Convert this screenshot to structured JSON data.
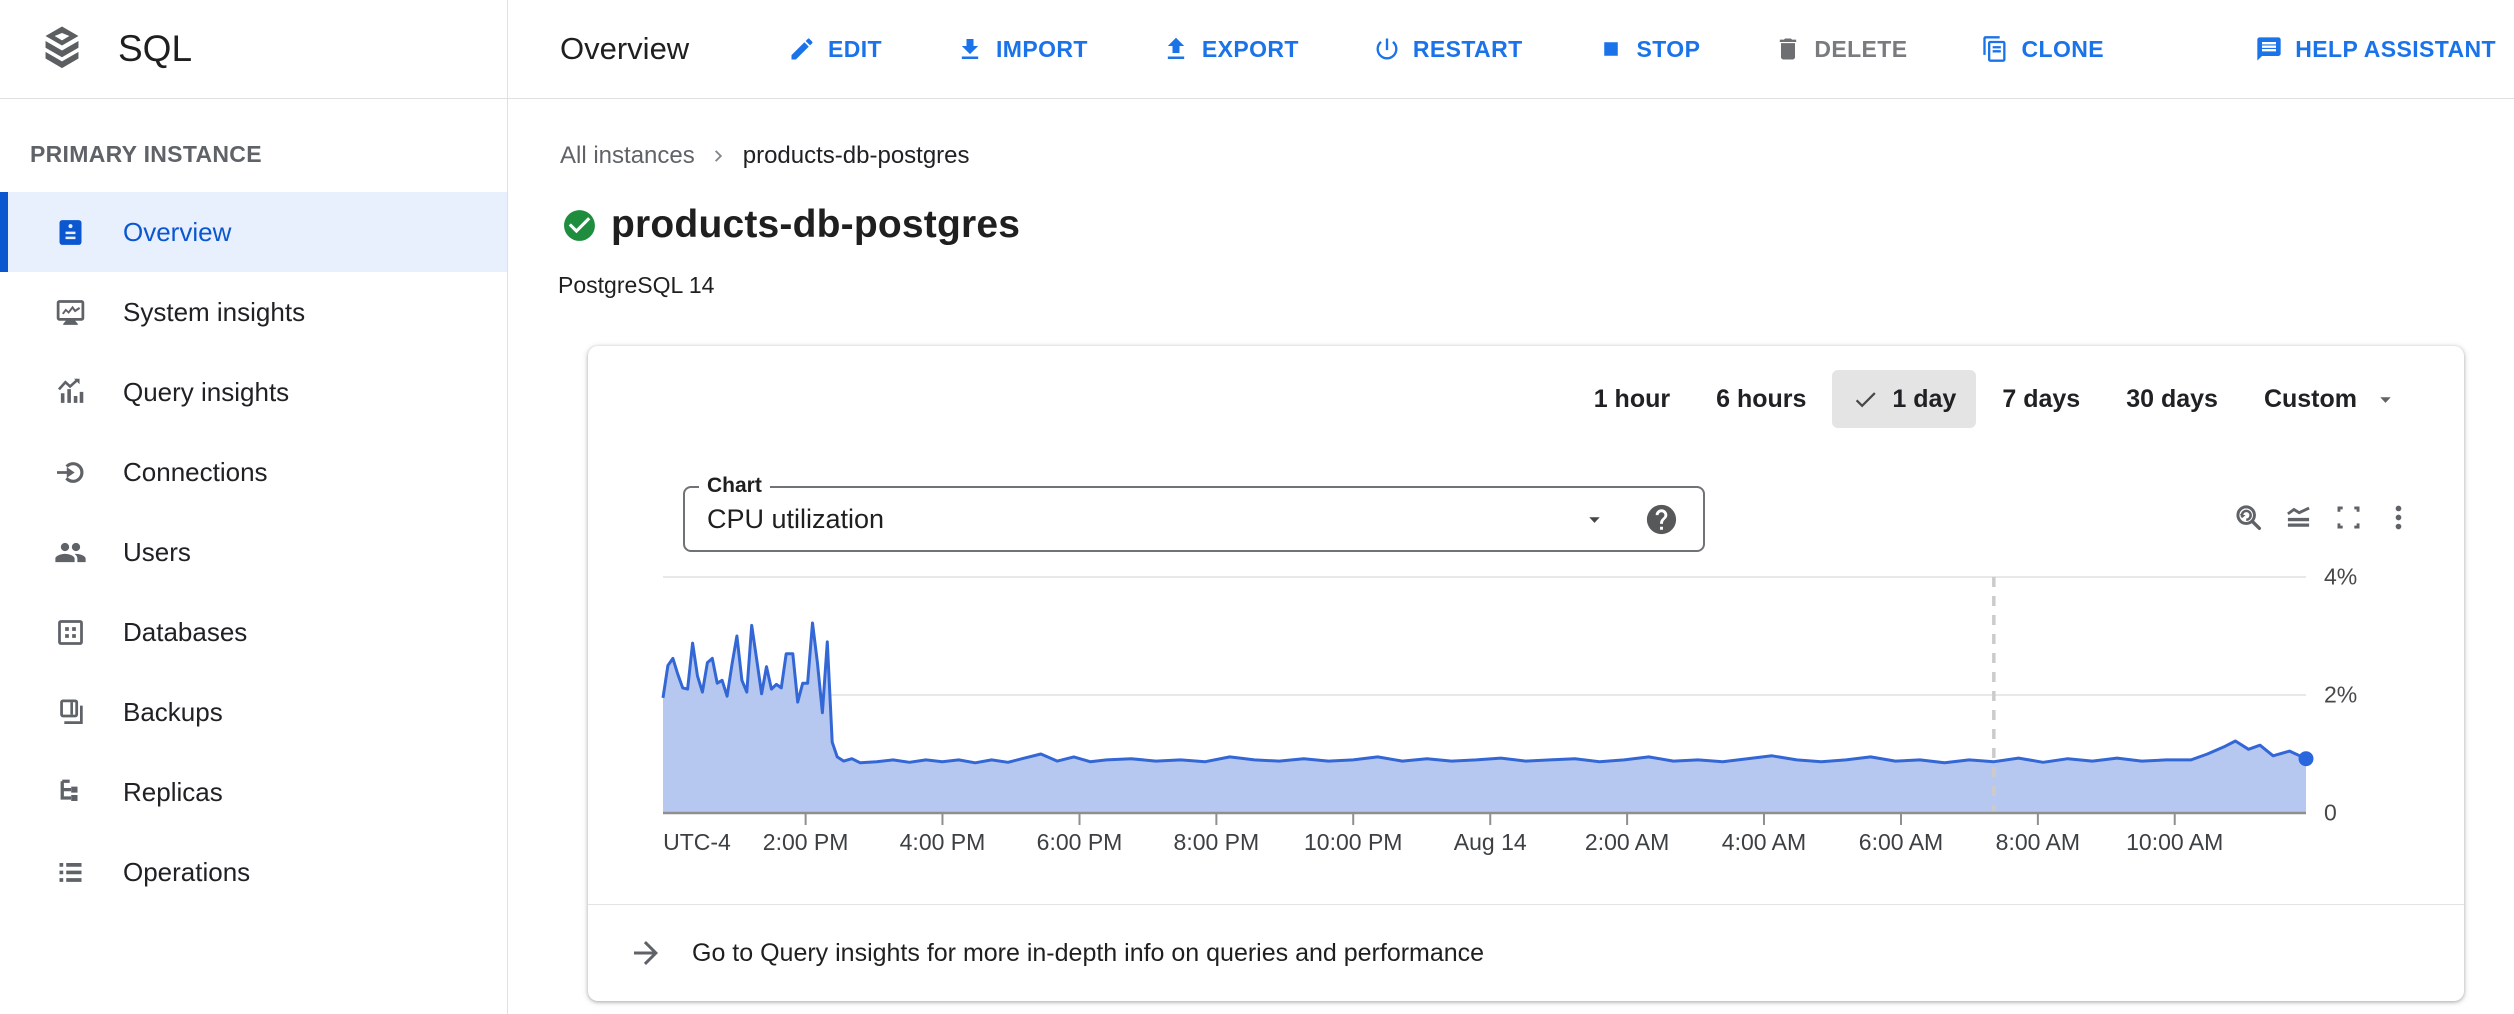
{
  "app": {
    "product_label": "SQL",
    "logo_icon": "database-stack-icon"
  },
  "header": {
    "title": "Overview",
    "actions": [
      {
        "label": "EDIT",
        "icon": "pencil-icon"
      },
      {
        "label": "IMPORT",
        "icon": "import-icon"
      },
      {
        "label": "EXPORT",
        "icon": "export-icon"
      },
      {
        "label": "RESTART",
        "icon": "restart-icon"
      },
      {
        "label": "STOP",
        "icon": "stop-icon"
      },
      {
        "label": "DELETE",
        "icon": "delete-icon",
        "disabled": true
      },
      {
        "label": "CLONE",
        "icon": "clone-icon"
      },
      {
        "label": "HELP ASSISTANT",
        "icon": "help-assistant-icon",
        "align": "right"
      }
    ]
  },
  "sidebar": {
    "section_label": "PRIMARY INSTANCE",
    "items": [
      {
        "label": "Overview",
        "icon": "overview-card-icon",
        "active": true
      },
      {
        "label": "System insights",
        "icon": "system-insights-icon"
      },
      {
        "label": "Query insights",
        "icon": "query-insights-icon"
      },
      {
        "label": "Connections",
        "icon": "connections-icon"
      },
      {
        "label": "Users",
        "icon": "users-icon"
      },
      {
        "label": "Databases",
        "icon": "databases-icon"
      },
      {
        "label": "Backups",
        "icon": "backups-icon"
      },
      {
        "label": "Replicas",
        "icon": "replicas-icon"
      },
      {
        "label": "Operations",
        "icon": "operations-icon"
      }
    ]
  },
  "page": {
    "breadcrumb": [
      "All instances",
      "products-db-postgres"
    ],
    "breadcrumb_separator_icon": "chevron-right-icon",
    "status_icon": "check-circle-icon",
    "status_color": "#1e8e3e",
    "title": "products-db-postgres",
    "subtitle": "PostgreSQL 14"
  },
  "card": {
    "time_ranges": [
      {
        "label": "1 hour"
      },
      {
        "label": "6 hours"
      },
      {
        "label": "1 day",
        "selected": true,
        "check_icon": "check-icon"
      },
      {
        "label": "7 days"
      },
      {
        "label": "30 days"
      },
      {
        "label": "Custom",
        "has_dropdown": true,
        "caret_icon": "caret-down-icon"
      }
    ],
    "chart_select": {
      "label": "Chart",
      "value": "CPU utilization",
      "caret_icon": "caret-down-icon",
      "help_icon": "help-circle-icon"
    },
    "toolbar": [
      {
        "name": "zoom-reset",
        "icon": "zoom-reset-icon"
      },
      {
        "name": "chart-mode",
        "icon": "area-chart-icon"
      },
      {
        "name": "fullscreen",
        "icon": "fullscreen-icon"
      },
      {
        "name": "more-options",
        "icon": "kebab-menu-icon"
      }
    ],
    "footer_icon": "arrow-forward-icon",
    "footer_link": "Go to Query insights for more in-depth info on queries and performance"
  },
  "chart_data": {
    "type": "area",
    "title": "CPU utilization",
    "unit": "%",
    "timezone_label": "UTC-4",
    "x_window": "24 hours ending ~11:55 AM Aug 14 (UTC-4)",
    "ylim": [
      0,
      4.3
    ],
    "grid": true,
    "legend": "none",
    "y_ticks": [
      {
        "v": 4,
        "label": "4%"
      },
      {
        "v": 2,
        "label": "2%"
      },
      {
        "v": 0,
        "label": "0"
      }
    ],
    "x_ticks": [
      {
        "t": 0.0868,
        "label": "2:00 PM"
      },
      {
        "t": 0.1701,
        "label": "4:00 PM"
      },
      {
        "t": 0.2535,
        "label": "6:00 PM"
      },
      {
        "t": 0.3368,
        "label": "8:00 PM"
      },
      {
        "t": 0.4201,
        "label": "10:00 PM"
      },
      {
        "t": 0.5035,
        "label": "Aug 14"
      },
      {
        "t": 0.5868,
        "label": "2:00 AM"
      },
      {
        "t": 0.6701,
        "label": "4:00 AM"
      },
      {
        "t": 0.7535,
        "label": "6:00 AM"
      },
      {
        "t": 0.8368,
        "label": "8:00 AM"
      },
      {
        "t": 0.9201,
        "label": "10:00 AM"
      }
    ],
    "marker_t": 0.81,
    "colors": {
      "line": "#3367d6",
      "fill": "#b7c8f0",
      "dot": "#2a66dd",
      "grid": "#e8e8e8",
      "baseline": "#8f8f8f",
      "dashed": "#cccbc7"
    },
    "series": [
      {
        "name": "CPU utilization",
        "points": [
          [
            0,
            1.95
          ],
          [
            0.003,
            2.5
          ],
          [
            0.006,
            2.62
          ],
          [
            0.009,
            2.35
          ],
          [
            0.012,
            2.12
          ],
          [
            0.015,
            2.1
          ],
          [
            0.018,
            2.88
          ],
          [
            0.021,
            2.32
          ],
          [
            0.024,
            2.05
          ],
          [
            0.027,
            2.55
          ],
          [
            0.03,
            2.62
          ],
          [
            0.033,
            2.2
          ],
          [
            0.036,
            2.25
          ],
          [
            0.039,
            1.98
          ],
          [
            0.042,
            2.52
          ],
          [
            0.045,
            3.0
          ],
          [
            0.048,
            2.25
          ],
          [
            0.051,
            2.05
          ],
          [
            0.054,
            3.18
          ],
          [
            0.057,
            2.6
          ],
          [
            0.06,
            2.02
          ],
          [
            0.063,
            2.48
          ],
          [
            0.066,
            2.1
          ],
          [
            0.069,
            2.18
          ],
          [
            0.072,
            2.12
          ],
          [
            0.075,
            2.7
          ],
          [
            0.079,
            2.7
          ],
          [
            0.082,
            1.88
          ],
          [
            0.085,
            2.2
          ],
          [
            0.088,
            2.2
          ],
          [
            0.091,
            3.22
          ],
          [
            0.094,
            2.55
          ],
          [
            0.097,
            1.7
          ],
          [
            0.1,
            2.9
          ],
          [
            0.103,
            1.2
          ],
          [
            0.106,
            0.95
          ],
          [
            0.11,
            0.88
          ],
          [
            0.115,
            0.92
          ],
          [
            0.12,
            0.85
          ],
          [
            0.13,
            0.87
          ],
          [
            0.14,
            0.9
          ],
          [
            0.15,
            0.86
          ],
          [
            0.16,
            0.9
          ],
          [
            0.17,
            0.87
          ],
          [
            0.18,
            0.9
          ],
          [
            0.19,
            0.85
          ],
          [
            0.2,
            0.9
          ],
          [
            0.21,
            0.86
          ],
          [
            0.22,
            0.93
          ],
          [
            0.23,
            1.0
          ],
          [
            0.24,
            0.88
          ],
          [
            0.25,
            0.95
          ],
          [
            0.26,
            0.87
          ],
          [
            0.27,
            0.9
          ],
          [
            0.285,
            0.92
          ],
          [
            0.3,
            0.88
          ],
          [
            0.315,
            0.9
          ],
          [
            0.33,
            0.87
          ],
          [
            0.345,
            0.95
          ],
          [
            0.36,
            0.9
          ],
          [
            0.375,
            0.88
          ],
          [
            0.39,
            0.92
          ],
          [
            0.405,
            0.88
          ],
          [
            0.42,
            0.9
          ],
          [
            0.435,
            0.95
          ],
          [
            0.45,
            0.88
          ],
          [
            0.465,
            0.92
          ],
          [
            0.48,
            0.88
          ],
          [
            0.495,
            0.9
          ],
          [
            0.51,
            0.93
          ],
          [
            0.525,
            0.88
          ],
          [
            0.54,
            0.9
          ],
          [
            0.555,
            0.92
          ],
          [
            0.57,
            0.87
          ],
          [
            0.585,
            0.9
          ],
          [
            0.6,
            0.95
          ],
          [
            0.615,
            0.88
          ],
          [
            0.63,
            0.9
          ],
          [
            0.645,
            0.87
          ],
          [
            0.66,
            0.92
          ],
          [
            0.675,
            0.97
          ],
          [
            0.69,
            0.9
          ],
          [
            0.705,
            0.87
          ],
          [
            0.72,
            0.9
          ],
          [
            0.735,
            0.95
          ],
          [
            0.75,
            0.88
          ],
          [
            0.765,
            0.9
          ],
          [
            0.78,
            0.85
          ],
          [
            0.795,
            0.9
          ],
          [
            0.81,
            0.87
          ],
          [
            0.825,
            0.93
          ],
          [
            0.84,
            0.86
          ],
          [
            0.855,
            0.92
          ],
          [
            0.87,
            0.88
          ],
          [
            0.885,
            0.93
          ],
          [
            0.9,
            0.88
          ],
          [
            0.915,
            0.9
          ],
          [
            0.93,
            0.9
          ],
          [
            0.94,
            1.0
          ],
          [
            0.95,
            1.12
          ],
          [
            0.957,
            1.22
          ],
          [
            0.965,
            1.08
          ],
          [
            0.972,
            1.15
          ],
          [
            0.98,
            0.97
          ],
          [
            0.99,
            1.05
          ],
          [
            1,
            0.92
          ]
        ]
      }
    ]
  }
}
